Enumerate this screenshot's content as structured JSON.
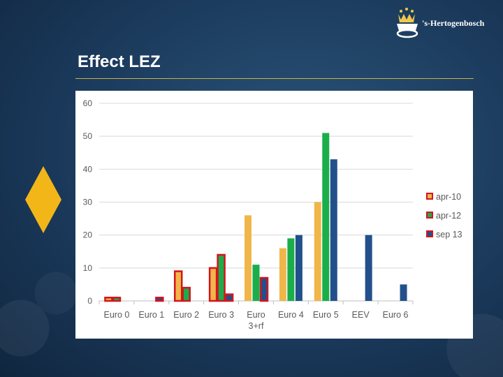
{
  "slide": {
    "title": "Effect LEZ",
    "logo_text": "'s-Hertogenbosch"
  },
  "icons": {
    "logo": "crown-icon",
    "diamond": "diamond-icon"
  },
  "colors": {
    "background": "#1b3a5c",
    "title_rule": "#c9b24a",
    "diamond": "#f2b619",
    "apr-10": "#f0b64a",
    "apr-12": "#1aae4a",
    "sep 13": "#22508a",
    "highlight_outline": "#d4141e"
  },
  "chart_data": {
    "type": "bar",
    "categories": [
      "Euro 0",
      "Euro 1",
      "Euro 2",
      "Euro 3",
      "Euro 3+rf",
      "Euro 4",
      "Euro 5",
      "EEV",
      "Euro 6"
    ],
    "category_lines": [
      [
        "Euro 0"
      ],
      [
        "Euro 1"
      ],
      [
        "Euro 2"
      ],
      [
        "Euro 3"
      ],
      [
        "Euro",
        "3+rf"
      ],
      [
        "Euro 4"
      ],
      [
        "Euro 5"
      ],
      [
        "EEV"
      ],
      [
        "Euro 6"
      ]
    ],
    "series": [
      {
        "name": "apr-10",
        "values": [
          1,
          0,
          9,
          10,
          26,
          16,
          30,
          0,
          0
        ],
        "outlined": [
          true,
          false,
          true,
          true,
          false,
          false,
          false,
          false,
          false
        ]
      },
      {
        "name": "apr-12",
        "values": [
          1,
          0,
          4,
          14,
          11,
          19,
          51,
          0,
          0
        ],
        "outlined": [
          true,
          false,
          true,
          true,
          false,
          false,
          false,
          false,
          false
        ]
      },
      {
        "name": "sep 13",
        "values": [
          0,
          1,
          0,
          2,
          7,
          20,
          43,
          20,
          5
        ],
        "outlined": [
          false,
          true,
          false,
          true,
          true,
          false,
          false,
          false,
          false
        ]
      }
    ],
    "ylim": [
      0,
      60
    ],
    "yticks": [
      0,
      10,
      20,
      30,
      40,
      50,
      60
    ],
    "grid": true,
    "legend": "right",
    "title": "",
    "xlabel": "",
    "ylabel": ""
  }
}
